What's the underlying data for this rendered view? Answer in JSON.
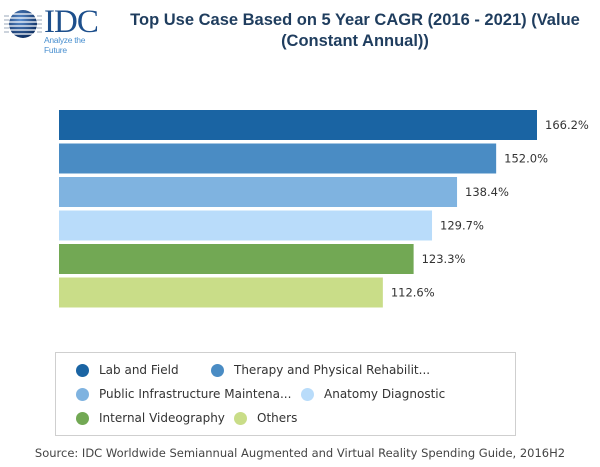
{
  "header": {
    "logo_text": "IDC",
    "logo_tagline": "Analyze the Future",
    "title_line1": "Top Use Case Based on 5 Year CAGR (2016 - 2021) (Value",
    "title_line2": "(Constant Annual))"
  },
  "chart_data": {
    "type": "bar",
    "orientation": "horizontal",
    "title": "Top Use Case Based on 5 Year CAGR (2016 - 2021) (Value (Constant Annual))",
    "xlabel": "",
    "ylabel": "",
    "categories": [
      "Lab and Field",
      "Therapy and Physical Rehabilit...",
      "Public Infrastructure Maintena...",
      "Anatomy Diagnostic",
      "Internal Videography",
      "Others"
    ],
    "values": [
      166.2,
      152.0,
      138.4,
      129.7,
      123.3,
      112.6
    ],
    "value_labels": [
      "166.2%",
      "152.0%",
      "138.4%",
      "129.7%",
      "123.3%",
      "112.6%"
    ],
    "colors": [
      "#1a64a3",
      "#4a8cc4",
      "#7fb3e0",
      "#b9dcfa",
      "#72a854",
      "#c9dd88"
    ],
    "xlim": [
      0,
      166.2
    ],
    "grid": false,
    "axes_visible": false,
    "legend_position": "bottom"
  },
  "legend": {
    "items": [
      {
        "label": "Lab and Field",
        "color": "#1a64a3"
      },
      {
        "label": "Therapy and Physical Rehabilit...",
        "color": "#4a8cc4"
      },
      {
        "label": "Public Infrastructure Maintena...",
        "color": "#7fb3e0"
      },
      {
        "label": "Anatomy Diagnostic",
        "color": "#b9dcfa"
      },
      {
        "label": "Internal Videography",
        "color": "#72a854"
      },
      {
        "label": "Others",
        "color": "#c9dd88"
      }
    ]
  },
  "footer": {
    "source": "Source: IDC Worldwide Semiannual Augmented and Virtual Reality Spending Guide, 2016H2"
  }
}
